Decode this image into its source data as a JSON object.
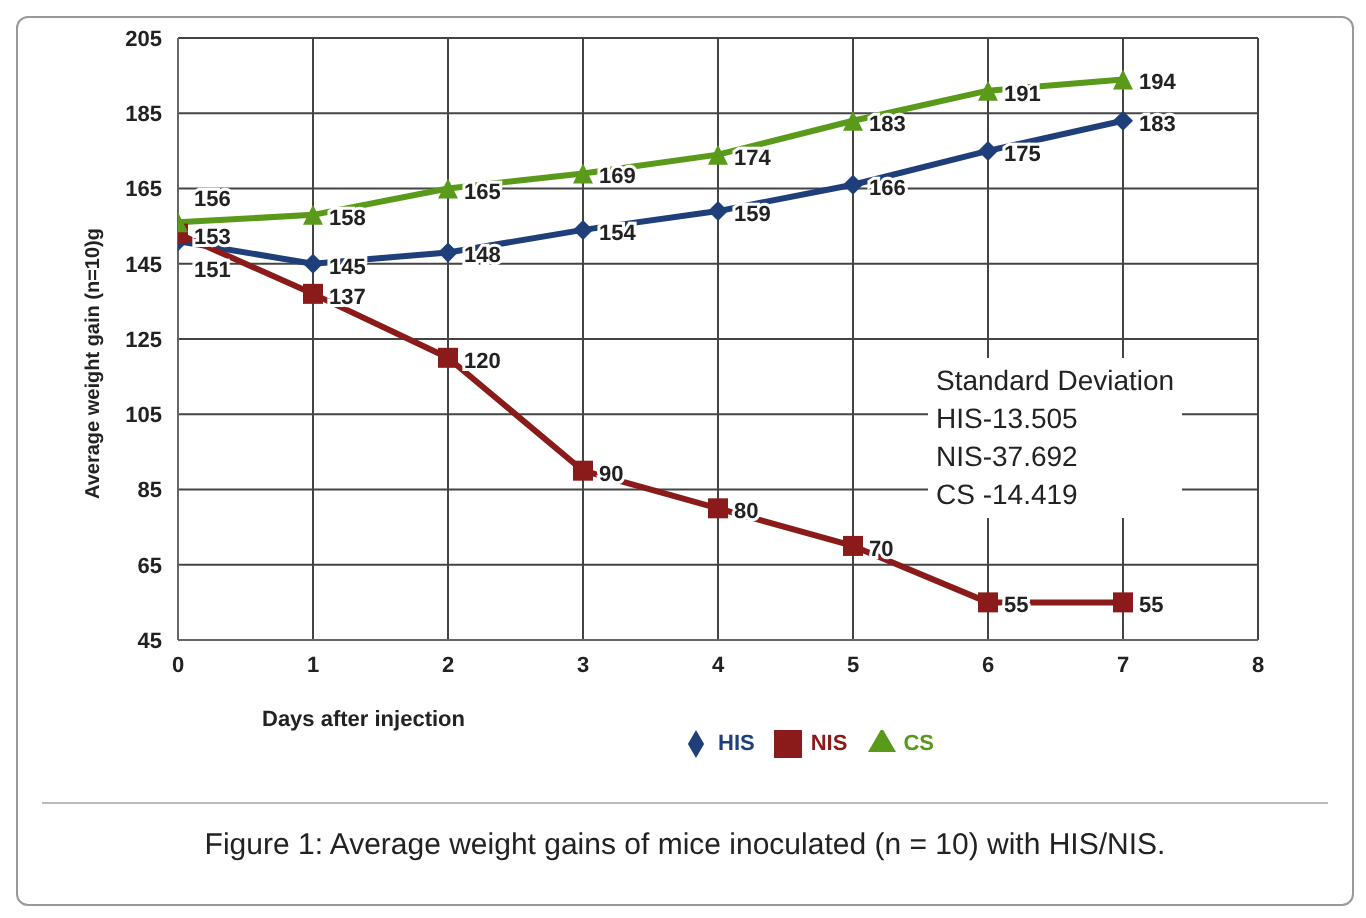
{
  "chart_data": {
    "type": "line",
    "xlabel": "Days after injection",
    "ylabel": "Average weight gain  (n=10)g",
    "x": [
      0,
      1,
      2,
      3,
      4,
      5,
      6,
      7
    ],
    "series": [
      {
        "name": "HIS",
        "color": "#1f3f7a",
        "marker": "diamond",
        "values": [
          151,
          145,
          148,
          154,
          159,
          166,
          175,
          183
        ]
      },
      {
        "name": "NIS",
        "color": "#8b1a1a",
        "marker": "square",
        "values": [
          153,
          137,
          120,
          90,
          80,
          70,
          55,
          55
        ]
      },
      {
        "name": "CS",
        "color": "#5a9a1a",
        "marker": "triangle",
        "values": [
          156,
          158,
          165,
          169,
          174,
          183,
          191,
          194
        ]
      }
    ],
    "xlim": [
      0,
      8
    ],
    "xticks": [
      0,
      1,
      2,
      3,
      4,
      5,
      6,
      7,
      8
    ],
    "ylim": [
      45,
      205
    ],
    "yticks": [
      45,
      65,
      85,
      105,
      125,
      145,
      165,
      185,
      205
    ],
    "grid": true,
    "legend": "bottom",
    "data_labels": true,
    "annotations": [
      "Standard Deviation",
      "HIS-13.505",
      "NIS-37.692",
      "CS -14.419",
      "Figure 1: Average weight gains of mice inoculated (n = 10) with HIS/NIS."
    ]
  }
}
